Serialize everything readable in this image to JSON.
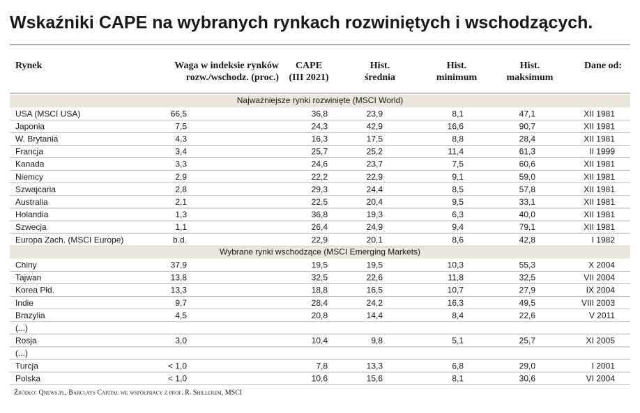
{
  "title": "Wskaźniki CAPE na wybranych rynkach rozwiniętych i wschodzących.",
  "table": {
    "headers": [
      [
        "Rynek"
      ],
      [
        "Waga w indeksie rynków",
        "rozw./wschodz. (proc.)"
      ],
      [
        "CAPE",
        "(III 2021)"
      ],
      [
        "Hist.",
        "średnia"
      ],
      [
        "Hist.",
        "minimum"
      ],
      [
        "Hist.",
        "maksimum"
      ],
      [
        "Dane od:"
      ]
    ],
    "sections": [
      {
        "title": "Najważniejsze rynki rozwinięte (MSCI World)",
        "rows": [
          [
            "USA (MSCI USA)",
            "66,5",
            "36,8",
            "23,9",
            "8,1",
            "47,1",
            "XII 1981"
          ],
          [
            "Japonia",
            "7,5",
            "24,3",
            "42,9",
            "16,6",
            "90,7",
            "XII 1981"
          ],
          [
            "W. Brytania",
            "4,3",
            "16,3",
            "17,5",
            "8,8",
            "28,4",
            "XII 1981"
          ],
          [
            "Francja",
            "3,4",
            "25,7",
            "25,2",
            "11,4",
            "61,3",
            "II 1999"
          ],
          [
            "Kanada",
            "3,3",
            "24,6",
            "23,7",
            "7,5",
            "60,6",
            "XII 1981"
          ],
          [
            "Niemcy",
            "2,9",
            "22,2",
            "22,9",
            "9,1",
            "59,0",
            "XII 1981"
          ],
          [
            "Szwajcaria",
            "2,8",
            "29,3",
            "24,4",
            "8,5",
            "57,8",
            "XII 1981"
          ],
          [
            "Australia",
            "2,1",
            "22,5",
            "20,4",
            "9,5",
            "33,1",
            "XII 1981"
          ],
          [
            "Holandia",
            "1,3",
            "36,8",
            "19,3",
            "6,3",
            "40,0",
            "XII 1981"
          ],
          [
            "Szwecja",
            "1,1",
            "26,4",
            "24,9",
            "9,4",
            "79,1",
            "XII 1981"
          ],
          [
            "Europa Zach. (MSCI Europe)",
            "b.d.",
            "22,9",
            "20,1",
            "8,6",
            "42,8",
            "I 1982"
          ]
        ]
      },
      {
        "title": "Wybrane rynki wschodzące (MSCI Emerging Markets)",
        "rows": [
          [
            "Chiny",
            "37,9",
            "19,5",
            "19,5",
            "10,3",
            "55,3",
            "X 2004"
          ],
          [
            "Tajwan",
            "13,8",
            "32,5",
            "22,6",
            "11,8",
            "32,5",
            "VII 2004"
          ],
          [
            "Korea Płd.",
            "13,3",
            "18,8",
            "16,5",
            "10,7",
            "27,9",
            "IX 2004"
          ],
          [
            "Indie",
            "9,7",
            "28,4",
            "24,2",
            "16,3",
            "49,5",
            "VIII 2003"
          ],
          [
            "Brazylia",
            "4,5",
            "20,8",
            "14,4",
            "8,4",
            "22,6",
            "V 2011"
          ],
          [
            "(...)"
          ],
          [
            "Rosja",
            "3,0",
            "10,4",
            "9,8",
            "5,1",
            "25,7",
            "XI 2005"
          ],
          [
            "(...)"
          ],
          [
            "Turcja",
            "< 1,0",
            "7,8",
            "13,3",
            "6,8",
            "29,0",
            "I 2001"
          ],
          [
            "Polska",
            "< 1,0",
            "10,6",
            "15,6",
            "8,1",
            "30,6",
            "VI 2004"
          ]
        ]
      }
    ]
  },
  "source": "Źródło: Qnews.pl, Barclays Capital we współpracy z prof. R. Shillerem, MSCI"
}
